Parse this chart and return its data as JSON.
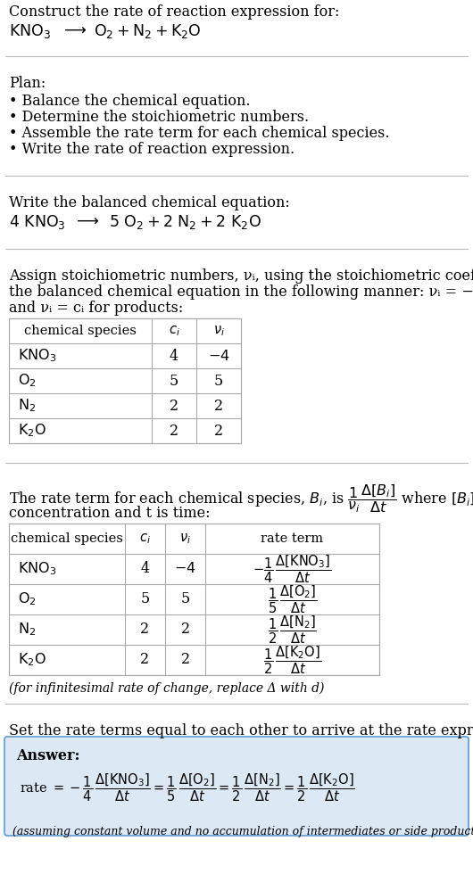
{
  "title_line1": "Construct the rate of reaction expression for:",
  "plan_header": "Plan:",
  "plan_items": [
    "• Balance the chemical equation.",
    "• Determine the stoichiometric numbers.",
    "• Assemble the rate term for each chemical species.",
    "• Write the rate of reaction expression."
  ],
  "balanced_header": "Write the balanced chemical equation:",
  "assign_text1": "Assign stoichiometric numbers, νᵢ, using the stoichiometric coefficients, cᵢ, from",
  "assign_text2": "the balanced chemical equation in the following manner: νᵢ = −cᵢ for reactants",
  "assign_text3": "and νᵢ = cᵢ for products:",
  "rate_text1": "The rate term for each chemical species, Bᵢ, is",
  "rate_text2": "concentration and t is time:",
  "infinitesimal_note": "(for infinitesimal rate of change, replace Δ with d)",
  "set_equal_text": "Set the rate terms equal to each other to arrive at the rate expression:",
  "answer_label": "Answer:",
  "answer_note": "(assuming constant volume and no accumulation of intermediates or side products)",
  "answer_box_color": "#dce9f5",
  "answer_border_color": "#5b9bd5",
  "bg_color": "#ffffff",
  "text_color": "#000000",
  "table_border_color": "#aaaaaa",
  "font_size": 11.5,
  "fig_width": 5.3,
  "fig_height": 9.8
}
